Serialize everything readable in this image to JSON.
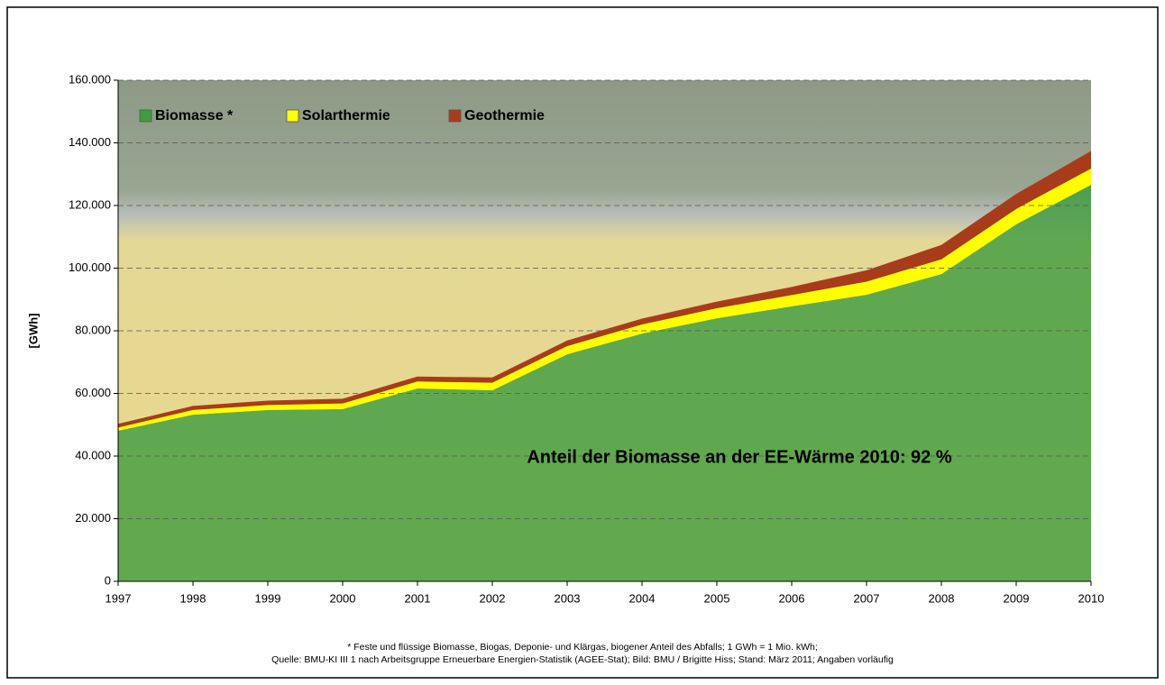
{
  "chart_data": {
    "type": "stacked-area",
    "y_label": "[GWh]",
    "annotation": "Anteil der Biomasse an der EE-Wärme 2010: 92 %",
    "footnotes": [
      "* Feste und flüssige Biomasse, Biogas, Deponie- und Klärgas, biogener Anteil des Abfalls; 1 GWh = 1 Mio. kWh;",
      "Quelle: BMU-KI III 1 nach Arbeitsgruppe Erneuerbare Energien-Statistik (AGEE-Stat); Bild: BMU / Brigitte Hiss; Stand: März 2011; Angaben vorläufig"
    ],
    "x": [
      1997,
      1998,
      1999,
      2000,
      2001,
      2002,
      2003,
      2004,
      2005,
      2006,
      2007,
      2008,
      2009,
      2010
    ],
    "xlim": [
      1997,
      2010
    ],
    "series": [
      {
        "name": "Biomasse *",
        "color": "#3f9c3f",
        "values": [
          48100,
          53200,
          54700,
          55000,
          61600,
          61000,
          72500,
          79100,
          84000,
          87800,
          91500,
          98100,
          114000,
          126600
        ]
      },
      {
        "name": "Solarthermie",
        "color": "#ffff00",
        "values": [
          1000,
          1500,
          1600,
          1800,
          2200,
          2400,
          2600,
          2900,
          3200,
          3600,
          4200,
          4700,
          4900,
          5200
        ]
      },
      {
        "name": "Geothermie",
        "color": "#a83c1a",
        "values": [
          1200,
          1300,
          1400,
          1500,
          1600,
          1700,
          1800,
          1900,
          2100,
          2600,
          3600,
          4600,
          4800,
          5600
        ]
      }
    ],
    "ylim": [
      0,
      160000
    ],
    "yticks": [
      0,
      {
        "value": 20000,
        "label": "20.000"
      },
      {
        "value": 40000,
        "label": "40.000"
      },
      {
        "value": 60000,
        "label": "60.000"
      },
      {
        "value": 80000,
        "label": "80.000"
      },
      {
        "value": 100000,
        "label": "100.000"
      },
      {
        "value": 120000,
        "label": "120.000"
      },
      {
        "value": 140000,
        "label": "140.000"
      },
      {
        "value": 160000,
        "label": "160.000"
      }
    ],
    "grid": true
  }
}
